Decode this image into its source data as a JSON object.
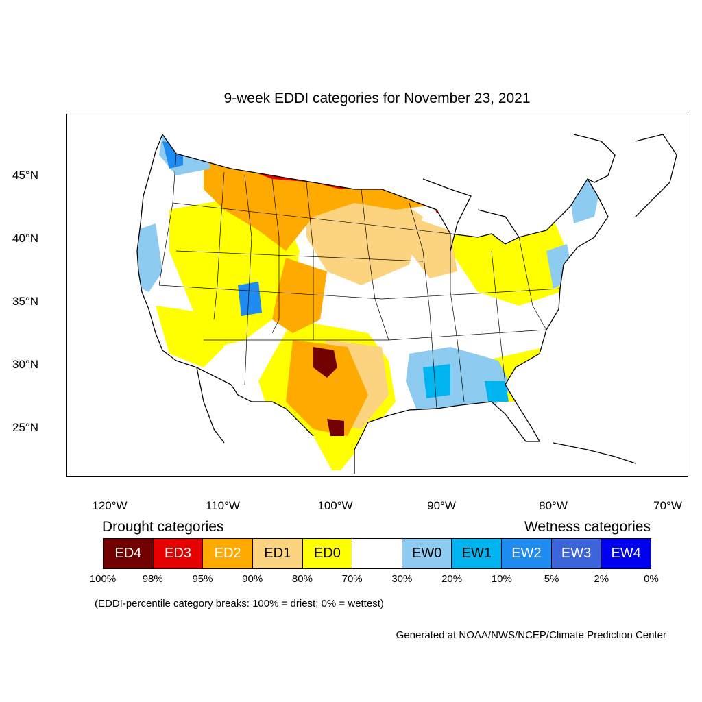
{
  "title": "9-week EDDI categories for November 23, 2021",
  "lat_ticks": [
    "45°N",
    "40°N",
    "35°N",
    "30°N",
    "25°N"
  ],
  "lon_ticks": [
    "120°W",
    "110°W",
    "100°W",
    "90°W",
    "80°W",
    "70°W"
  ],
  "legend": {
    "drought_heading": "Drought categories",
    "wetness_heading": "Wetness categories",
    "categories": [
      {
        "label": "ED4",
        "color": "#730000",
        "text_color": "#ffffff"
      },
      {
        "label": "ED3",
        "color": "#e60000",
        "text_color": "#ffffff"
      },
      {
        "label": "ED2",
        "color": "#ffaa00",
        "text_color": "#ffffff"
      },
      {
        "label": "ED1",
        "color": "#fcd37f",
        "text_color": "#000000"
      },
      {
        "label": "ED0",
        "color": "#ffff00",
        "text_color": "#000000"
      },
      {
        "label": "",
        "color": "#ffffff",
        "text_color": "#000000"
      },
      {
        "label": "EW0",
        "color": "#8ecbf0",
        "text_color": "#000000"
      },
      {
        "label": "EW1",
        "color": "#00b4f0",
        "text_color": "#000000"
      },
      {
        "label": "EW2",
        "color": "#1e8cf0",
        "text_color": "#ffffff"
      },
      {
        "label": "EW3",
        "color": "#3c64dc",
        "text_color": "#ffffff"
      },
      {
        "label": "EW4",
        "color": "#0000f0",
        "text_color": "#ffffff"
      }
    ],
    "percent_breaks": [
      "100%",
      "98%",
      "95%",
      "90%",
      "80%",
      "70%",
      "30%",
      "20%",
      "10%",
      "5%",
      "2%",
      "0%"
    ]
  },
  "note": "(EDDI-percentile category breaks: 100% = driest; 0% = wettest)",
  "credit": "Generated at NOAA/NWS/NCEP/Climate Prediction Center"
}
